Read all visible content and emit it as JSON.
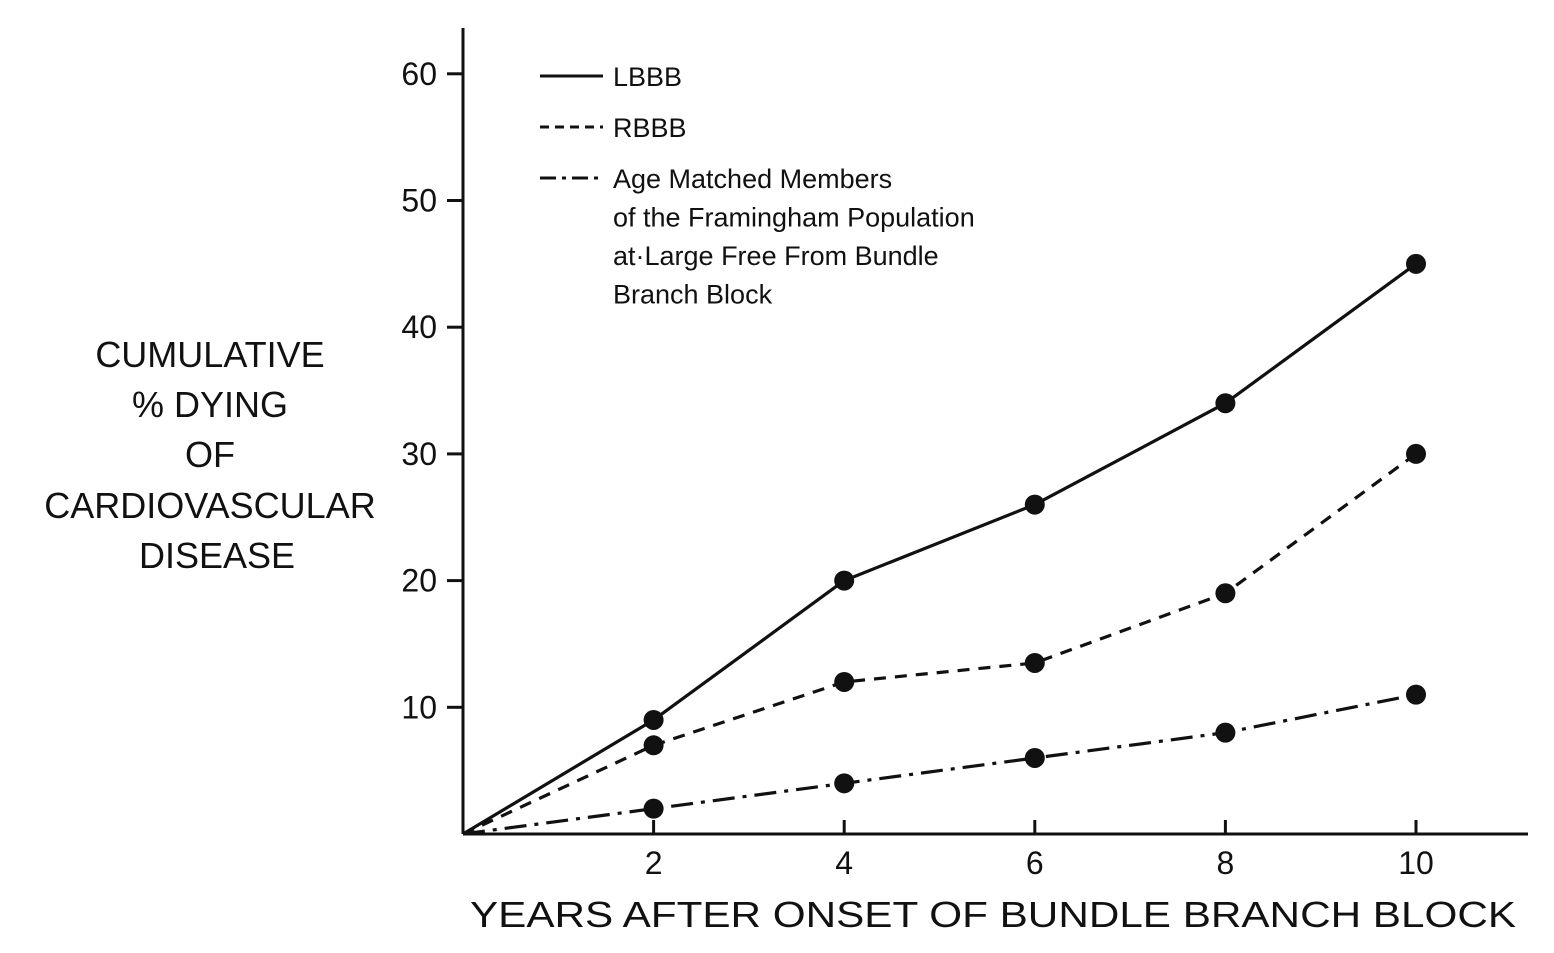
{
  "chart_data": {
    "type": "line",
    "xlabel": "YEARS AFTER ONSET OF BUNDLE BRANCH BLOCK",
    "ylabel_lines": [
      "CUMULATIVE",
      "% DYING",
      "OF",
      "CARDIOVASCULAR",
      "DISEASE"
    ],
    "xlim": [
      0,
      11
    ],
    "ylim": [
      0,
      60
    ],
    "x_ticks": [
      2,
      4,
      6,
      8,
      10
    ],
    "y_ticks": [
      10,
      20,
      30,
      40,
      50,
      60
    ],
    "grid": false,
    "legend_position": "top-left",
    "series": [
      {
        "name": "LBBB",
        "style": "solid",
        "color": "#111111",
        "x": [
          0,
          2,
          4,
          6,
          8,
          10
        ],
        "y": [
          0,
          9,
          20,
          26,
          34,
          45
        ]
      },
      {
        "name": "RBBB",
        "style": "dashed",
        "color": "#111111",
        "x": [
          0,
          2,
          4,
          6,
          8,
          10
        ],
        "y": [
          0,
          7,
          12,
          13.5,
          19,
          30
        ]
      },
      {
        "name_lines": [
          "Age Matched Members",
          "of the Framingham Population",
          "at·Large Free From Bundle",
          "Branch Block"
        ],
        "style": "dash-dot",
        "color": "#111111",
        "x": [
          0,
          2,
          4,
          6,
          8,
          10
        ],
        "y": [
          0,
          2,
          4,
          6,
          8,
          11
        ]
      }
    ]
  }
}
